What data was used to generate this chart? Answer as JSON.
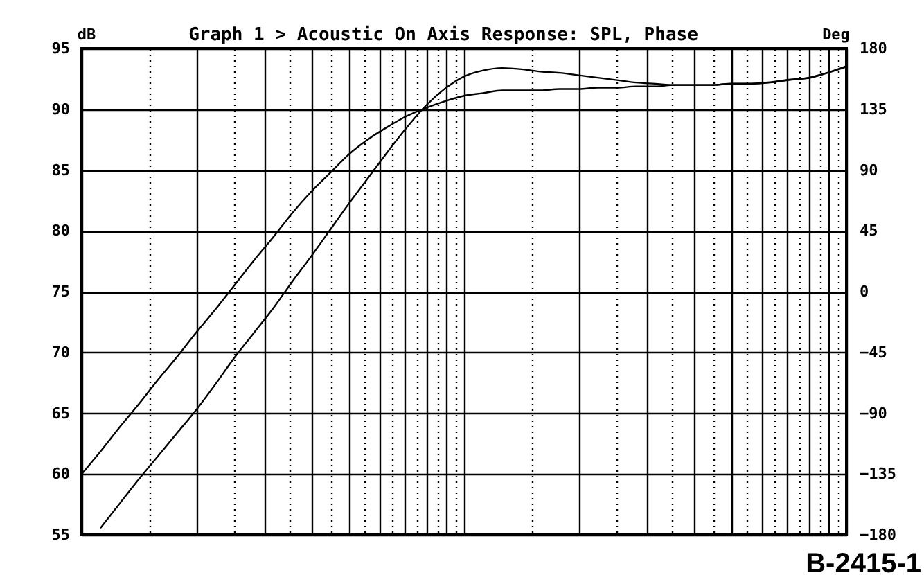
{
  "chart_data": {
    "type": "line",
    "title": "Graph 1 > Acoustic On Axis Response: SPL, Phase",
    "ylabel": "dB",
    "y2label": "Deg",
    "categories": [
      null,
      null,
      null,
      null,
      null,
      null,
      null,
      null,
      null,
      null,
      null,
      null,
      null,
      null,
      null,
      null,
      null,
      null,
      null,
      null,
      null,
      null,
      null,
      null,
      null,
      null,
      null,
      null,
      null,
      null,
      null,
      null,
      null,
      null,
      null,
      null,
      null,
      null,
      null,
      null,
      null
    ],
    "series": [
      {
        "color": "#000000",
        "values": [
          null,
          55.6,
          57.6,
          59.6,
          61.5,
          63.4,
          65.3,
          67.4,
          69.6,
          71.6,
          73.6,
          75.8,
          77.9,
          80.1,
          82.3,
          84.4,
          86.5,
          88.5,
          90.3,
          91.7,
          92.7,
          93.2,
          93.4,
          93.3,
          93.1,
          93.0,
          92.8,
          92.6,
          92.4,
          92.2,
          92.1,
          92.0,
          92.0,
          92.0,
          92.1,
          92.1,
          92.2,
          92.4,
          92.6,
          93.0,
          93.5
        ]
      },
      {
        "color": "#000000",
        "axis": "y2",
        "values": [
          -135,
          -118,
          -100,
          -83,
          -65,
          -48,
          -30,
          -13,
          5,
          23,
          40,
          58,
          74,
          88,
          102,
          113,
          122,
          130,
          136,
          141,
          145,
          147,
          149,
          149,
          149,
          150,
          150,
          151,
          151,
          152,
          152,
          153,
          153,
          153,
          154,
          154,
          155,
          157,
          158,
          162,
          167
        ]
      }
    ],
    "ylim": [
      55,
      95
    ],
    "yticks": [
      55,
      60,
      65,
      70,
      75,
      80,
      85,
      90,
      95
    ],
    "y2lim": [
      -180,
      180
    ],
    "y2ticks": [
      -180,
      -135,
      -90,
      -45,
      0,
      45,
      90,
      135,
      180
    ],
    "grid": true,
    "tick_labels": "y",
    "annotations": [
      "B-2415-1"
    ]
  }
}
